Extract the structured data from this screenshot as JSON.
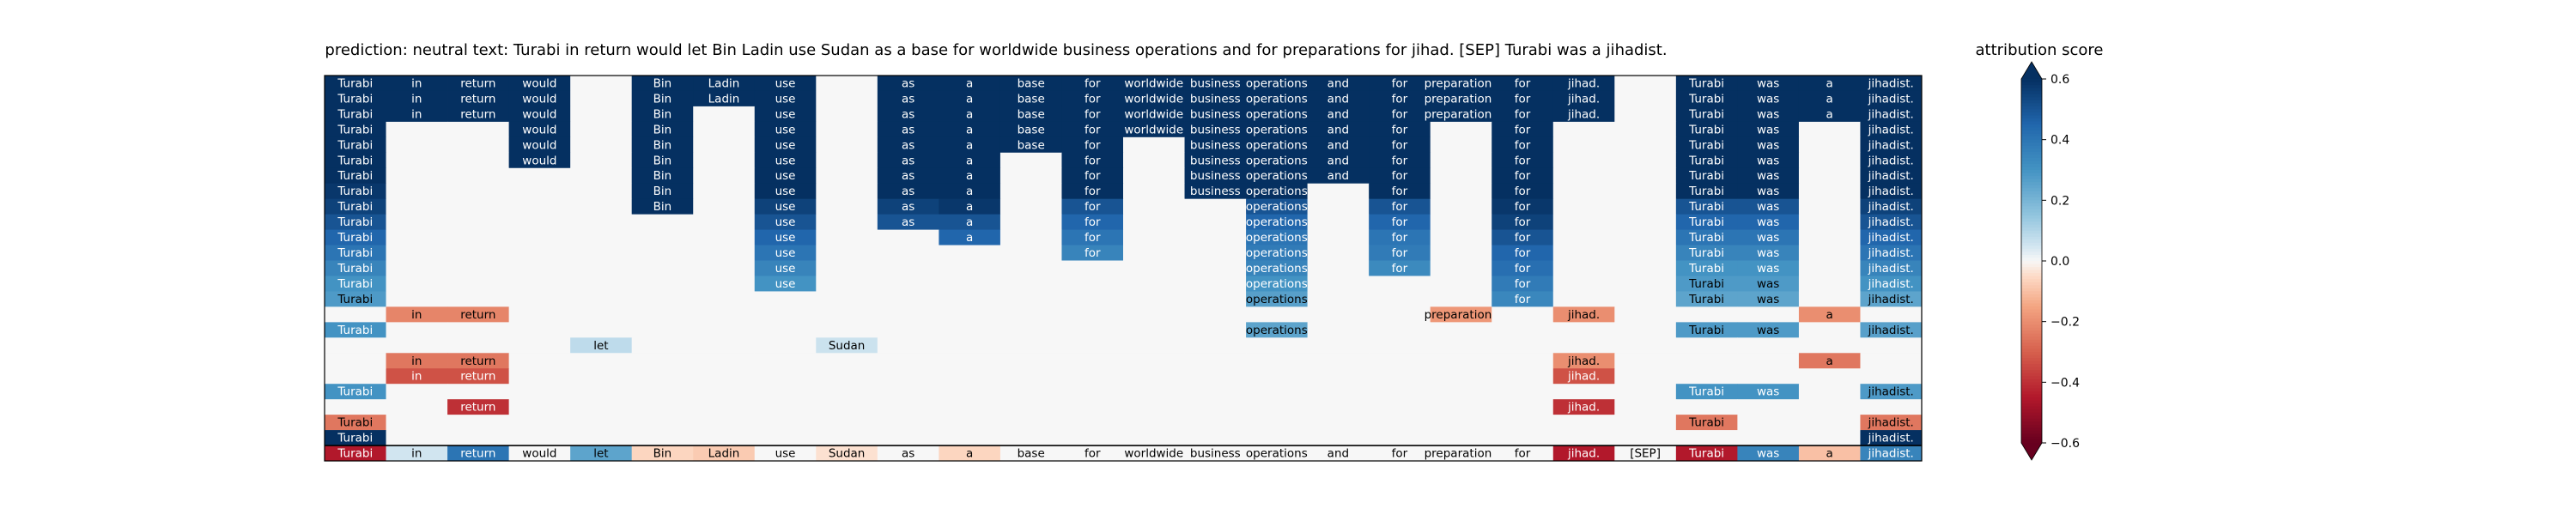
{
  "chart_data": {
    "type": "heatmap",
    "title": "prediction:  neutral     text:  Turabi in return would let Bin Ladin use Sudan as a base for worldwide business operations and for preparations for jihad. [SEP] Turabi was a jihadist.",
    "prediction": "neutral",
    "tokens": [
      "Turabi",
      "in",
      "return",
      "would",
      "let",
      "Bin",
      "Ladin",
      "use",
      "Sudan",
      "as",
      "a",
      "base",
      "for",
      "worldwide",
      "business",
      "operations",
      "and",
      "for",
      "preparations",
      "for",
      "jihad.",
      "[SEP]",
      "Turabi",
      "was",
      "a",
      "jihadist."
    ],
    "rows": [
      [
        0.6,
        0.6,
        0.6,
        0.6,
        0,
        0.6,
        0.6,
        0.6,
        0,
        0.6,
        0.6,
        0.6,
        0.6,
        0.6,
        0.6,
        0.6,
        0.6,
        0.6,
        0.6,
        0.6,
        0.6,
        0,
        0.6,
        0.6,
        0.6,
        0.6
      ],
      [
        0.6,
        0.6,
        0.6,
        0.6,
        0,
        0.6,
        0.6,
        0.6,
        0,
        0.6,
        0.6,
        0.6,
        0.6,
        0.6,
        0.6,
        0.6,
        0.6,
        0.6,
        0.6,
        0.6,
        0.6,
        0,
        0.6,
        0.6,
        0.6,
        0.6
      ],
      [
        0.6,
        0.6,
        0.6,
        0.6,
        0,
        0.6,
        0,
        0.6,
        0,
        0.6,
        0.6,
        0.6,
        0.6,
        0.6,
        0.6,
        0.6,
        0.6,
        0.6,
        0.6,
        0.6,
        0.6,
        0,
        0.6,
        0.6,
        0.6,
        0.6
      ],
      [
        0.6,
        0,
        0,
        0.6,
        0,
        0.6,
        0,
        0.6,
        0,
        0.6,
        0.6,
        0.6,
        0.6,
        0.6,
        0.6,
        0.6,
        0.6,
        0.6,
        0,
        0.6,
        0,
        0,
        0.6,
        0.6,
        0,
        0.6
      ],
      [
        0.6,
        0,
        0,
        0.6,
        0,
        0.6,
        0,
        0.6,
        0,
        0.6,
        0.6,
        0.6,
        0.6,
        0,
        0.6,
        0.6,
        0.6,
        0.6,
        0,
        0.6,
        0,
        0,
        0.6,
        0.6,
        0,
        0.6
      ],
      [
        0.6,
        0,
        0,
        0.6,
        0,
        0.6,
        0,
        0.6,
        0,
        0.6,
        0.6,
        0,
        0.6,
        0,
        0.6,
        0.6,
        0.6,
        0.6,
        0,
        0.6,
        0,
        0,
        0.6,
        0.6,
        0,
        0.6
      ],
      [
        0.6,
        0,
        0,
        0,
        0,
        0.6,
        0,
        0.6,
        0,
        0.6,
        0.6,
        0,
        0.6,
        0,
        0.6,
        0.6,
        0.6,
        0.6,
        0,
        0.6,
        0,
        0,
        0.6,
        0.6,
        0,
        0.6
      ],
      [
        0.58,
        0,
        0,
        0,
        0,
        0.6,
        0,
        0.6,
        0,
        0.6,
        0.6,
        0,
        0.6,
        0,
        0.6,
        0.6,
        0,
        0.6,
        0,
        0.6,
        0,
        0,
        0.6,
        0.6,
        0,
        0.6
      ],
      [
        0.55,
        0,
        0,
        0,
        0,
        0.6,
        0,
        0.55,
        0,
        0.55,
        0.58,
        0,
        0.5,
        0,
        0,
        0.5,
        0,
        0.5,
        0,
        0.58,
        0,
        0,
        0.5,
        0.5,
        0,
        0.55
      ],
      [
        0.5,
        0,
        0,
        0,
        0,
        0,
        0,
        0.5,
        0,
        0.5,
        0.5,
        0,
        0.45,
        0,
        0,
        0.45,
        0,
        0.45,
        0,
        0.55,
        0,
        0,
        0.45,
        0.45,
        0,
        0.5
      ],
      [
        0.45,
        0,
        0,
        0,
        0,
        0,
        0,
        0.45,
        0,
        0,
        0.45,
        0,
        0.4,
        0,
        0,
        0.4,
        0,
        0.4,
        0,
        0.5,
        0,
        0,
        0.4,
        0.4,
        0,
        0.45
      ],
      [
        0.4,
        0,
        0,
        0,
        0,
        0,
        0,
        0.4,
        0,
        0,
        0,
        0,
        0.35,
        0,
        0,
        0.38,
        0,
        0.38,
        0,
        0.45,
        0,
        0,
        0.35,
        0.35,
        0,
        0.4
      ],
      [
        0.35,
        0,
        0,
        0,
        0,
        0,
        0,
        0.35,
        0,
        0,
        0,
        0,
        0,
        0,
        0,
        0.35,
        0,
        0.33,
        0,
        0.42,
        0,
        0,
        0.3,
        0.3,
        0,
        0.35
      ],
      [
        0.3,
        0,
        0,
        0,
        0,
        0,
        0,
        0.3,
        0,
        0,
        0,
        0,
        0,
        0,
        0,
        0.3,
        0,
        0,
        0,
        0.38,
        0,
        0,
        0.28,
        0.28,
        0,
        0.3
      ],
      [
        0.28,
        0,
        0,
        0,
        0,
        0,
        0,
        0,
        0,
        0,
        0,
        0,
        0,
        0,
        0,
        0.26,
        0,
        0,
        0,
        0.34,
        0,
        0,
        0.25,
        0.25,
        0,
        0.25
      ],
      [
        0,
        -0.22,
        -0.22,
        0,
        0,
        0,
        0,
        0,
        0,
        0,
        0,
        0,
        0,
        0,
        0,
        0,
        0,
        0,
        -0.18,
        0,
        -0.2,
        0,
        0,
        0,
        -0.2,
        0
      ],
      [
        0.3,
        0,
        0,
        0,
        0,
        0,
        0,
        0,
        0,
        0,
        0,
        0,
        0,
        0,
        0,
        0.25,
        0,
        0,
        0,
        0,
        0,
        0,
        0.28,
        0.28,
        0,
        0.26
      ],
      [
        0,
        0,
        0,
        0,
        0.08,
        0,
        0,
        0,
        0.06,
        0,
        0,
        0,
        0,
        0,
        0,
        0,
        0,
        0,
        0,
        0,
        0,
        0,
        0,
        0,
        0,
        0
      ],
      [
        0,
        -0.25,
        -0.25,
        0,
        0,
        0,
        0,
        0,
        0,
        0,
        0,
        0,
        0,
        0,
        0,
        0,
        0,
        0,
        0,
        0,
        -0.2,
        0,
        0,
        0,
        -0.25,
        0
      ],
      [
        0,
        -0.33,
        -0.33,
        0,
        0,
        0,
        0,
        0,
        0,
        0,
        0,
        0,
        0,
        0,
        0,
        0,
        0,
        0,
        0,
        0,
        -0.33,
        0,
        0,
        0,
        0,
        0
      ],
      [
        0.3,
        0,
        0,
        0,
        0,
        0,
        0,
        0,
        0,
        0,
        0,
        0,
        0,
        0,
        0,
        0,
        0,
        0,
        0,
        0,
        0,
        0,
        0.3,
        0.3,
        0,
        0.28
      ],
      [
        0,
        0,
        -0.4,
        0,
        0,
        0,
        0,
        0,
        0,
        0,
        0,
        0,
        0,
        0,
        0,
        0,
        0,
        0,
        0,
        0,
        -0.4,
        0,
        0,
        0,
        0,
        0
      ],
      [
        -0.25,
        0,
        0,
        0,
        0,
        0,
        0,
        0,
        0,
        0,
        0,
        0,
        0,
        0,
        0,
        0,
        0,
        0,
        0,
        0,
        0,
        0,
        -0.25,
        0,
        0,
        -0.25
      ],
      [
        0.6,
        0,
        0,
        0,
        0,
        0,
        0,
        0,
        0,
        0,
        0,
        0,
        0,
        0,
        0,
        0,
        0,
        0,
        0,
        0,
        0,
        0,
        0,
        0,
        0,
        0.6
      ],
      [
        -0.45,
        0.05,
        0.4,
        0,
        0.25,
        -0.06,
        -0.08,
        0,
        -0.04,
        0,
        -0.06,
        0,
        0,
        0,
        0,
        0,
        0,
        0,
        0,
        0,
        -0.45,
        0,
        -0.45,
        0.35,
        -0.1,
        0.35
      ]
    ],
    "colorbar": {
      "label": "attribution score",
      "ticks": [
        "0.6",
        "0.4",
        "0.2",
        "0.0",
        "−0.2",
        "−0.4",
        "−0.6"
      ],
      "vmin": -0.6,
      "vmax": 0.6,
      "extend": "both",
      "colormap": "RdBu"
    }
  }
}
